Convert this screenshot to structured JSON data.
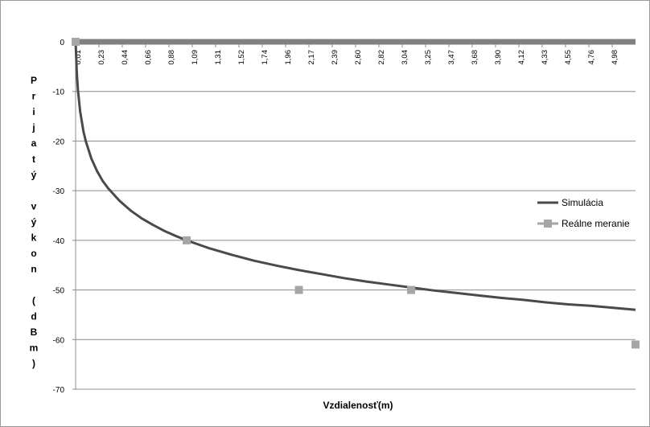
{
  "chart_data": {
    "type": "line",
    "title": "",
    "xlabel": "Vzdialenosť(m)",
    "ylabel_letters": [
      "P",
      "r",
      "i",
      "j",
      "a",
      "t",
      "ý",
      "",
      "v",
      "ý",
      "k",
      "o",
      "n",
      "",
      "(",
      "d",
      "B",
      "m",
      ")"
    ],
    "ylim": [
      -70,
      0
    ],
    "yticks": [
      "0",
      "-10",
      "-20",
      "-30",
      "-40",
      "-50",
      "-60",
      "-70"
    ],
    "xlim": [
      0.01,
      5.0
    ],
    "xticks": [
      "0,01",
      "0,23",
      "0,44",
      "0,66",
      "0,88",
      "1,09",
      "1,31",
      "1,52",
      "1,74",
      "1,96",
      "2,17",
      "2,39",
      "2,60",
      "2,82",
      "3,04",
      "3,25",
      "3,47",
      "3,68",
      "3,90",
      "4,12",
      "4,33",
      "4,55",
      "4,76",
      "4,98"
    ],
    "grid": true,
    "legend_position": "right",
    "series": [
      {
        "name": "Simulácia",
        "style": "line",
        "color": "#4a4a4a",
        "x": [
          0.01,
          0.02,
          0.03,
          0.05,
          0.08,
          0.1,
          0.15,
          0.2,
          0.25,
          0.3,
          0.4,
          0.5,
          0.6,
          0.7,
          0.8,
          0.9,
          1.0,
          1.2,
          1.4,
          1.6,
          1.8,
          2.0,
          2.2,
          2.4,
          2.6,
          2.8,
          3.0,
          3.2,
          3.4,
          3.6,
          3.8,
          4.0,
          4.2,
          4.4,
          4.6,
          4.8,
          5.0
        ],
        "y": [
          0.0,
          -6.0,
          -9.6,
          -14.0,
          -18.1,
          -20.0,
          -23.5,
          -26.0,
          -28.0,
          -29.5,
          -32.0,
          -34.0,
          -35.6,
          -36.9,
          -38.1,
          -39.1,
          -40.0,
          -41.6,
          -42.9,
          -44.1,
          -45.1,
          -46.0,
          -46.8,
          -47.6,
          -48.3,
          -48.9,
          -49.5,
          -50.1,
          -50.6,
          -51.1,
          -51.6,
          -52.0,
          -52.5,
          -52.9,
          -53.2,
          -53.6,
          -54.0
        ]
      },
      {
        "name": "Reálne meranie",
        "style": "markers",
        "color": "#a6a6a6",
        "x": [
          0.01,
          1.0,
          2.0,
          3.0,
          5.0
        ],
        "y": [
          0,
          -40,
          -50,
          -50,
          -61
        ]
      }
    ],
    "zero_line_color": "#808080"
  }
}
